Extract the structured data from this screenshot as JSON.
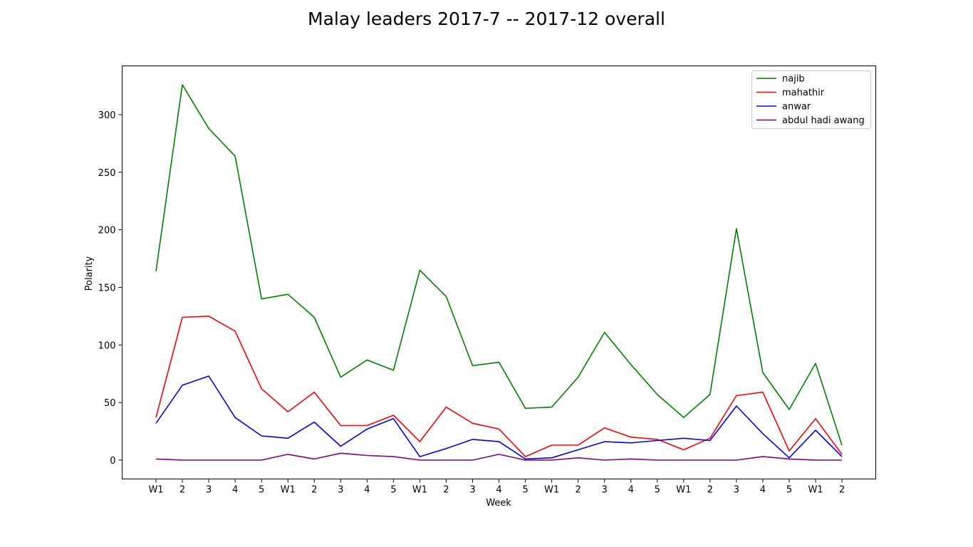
{
  "chart_data": {
    "type": "line",
    "title": "Malay leaders 2017-7 -- 2017-12 overall",
    "xlabel": "Week",
    "ylabel": "Polarity",
    "categories": [
      "W1",
      "2",
      "3",
      "4",
      "5",
      "W1",
      "2",
      "3",
      "4",
      "5",
      "W1",
      "2",
      "3",
      "4",
      "5",
      "W1",
      "2",
      "3",
      "4",
      "5",
      "W1",
      "2",
      "3",
      "4",
      "5",
      "W1",
      "2"
    ],
    "ylim": [
      -16,
      340
    ],
    "yticks": [
      0,
      50,
      100,
      150,
      200,
      250,
      300
    ],
    "grid": false,
    "legend_position": "top-right",
    "series": [
      {
        "name": "najib",
        "color": "#008000",
        "values": [
          164,
          326,
          288,
          264,
          140,
          144,
          124,
          72,
          87,
          78,
          165,
          142,
          82,
          85,
          45,
          46,
          72,
          111,
          83,
          57,
          37,
          57,
          201,
          76,
          44,
          84,
          13
        ]
      },
      {
        "name": "mahathir",
        "color": "#ff0000",
        "values": [
          37,
          124,
          125,
          112,
          62,
          42,
          59,
          30,
          30,
          39,
          16,
          46,
          32,
          27,
          3,
          13,
          13,
          28,
          20,
          18,
          9,
          19,
          56,
          59,
          8,
          36,
          5
        ]
      },
      {
        "name": "anwar",
        "color": "#0000ff",
        "values": [
          32,
          65,
          73,
          37,
          21,
          19,
          33,
          12,
          27,
          36,
          3,
          10,
          18,
          16,
          1,
          2,
          9,
          16,
          15,
          17,
          19,
          17,
          47,
          23,
          2,
          26,
          3
        ]
      },
      {
        "name": "abdul hadi awang",
        "color": "#800080",
        "values": [
          1,
          0,
          0,
          0,
          0,
          5,
          1,
          6,
          4,
          3,
          0,
          0,
          0,
          5,
          0,
          0,
          2,
          0,
          1,
          0,
          0,
          0,
          0,
          3,
          1,
          0,
          0
        ]
      }
    ]
  }
}
